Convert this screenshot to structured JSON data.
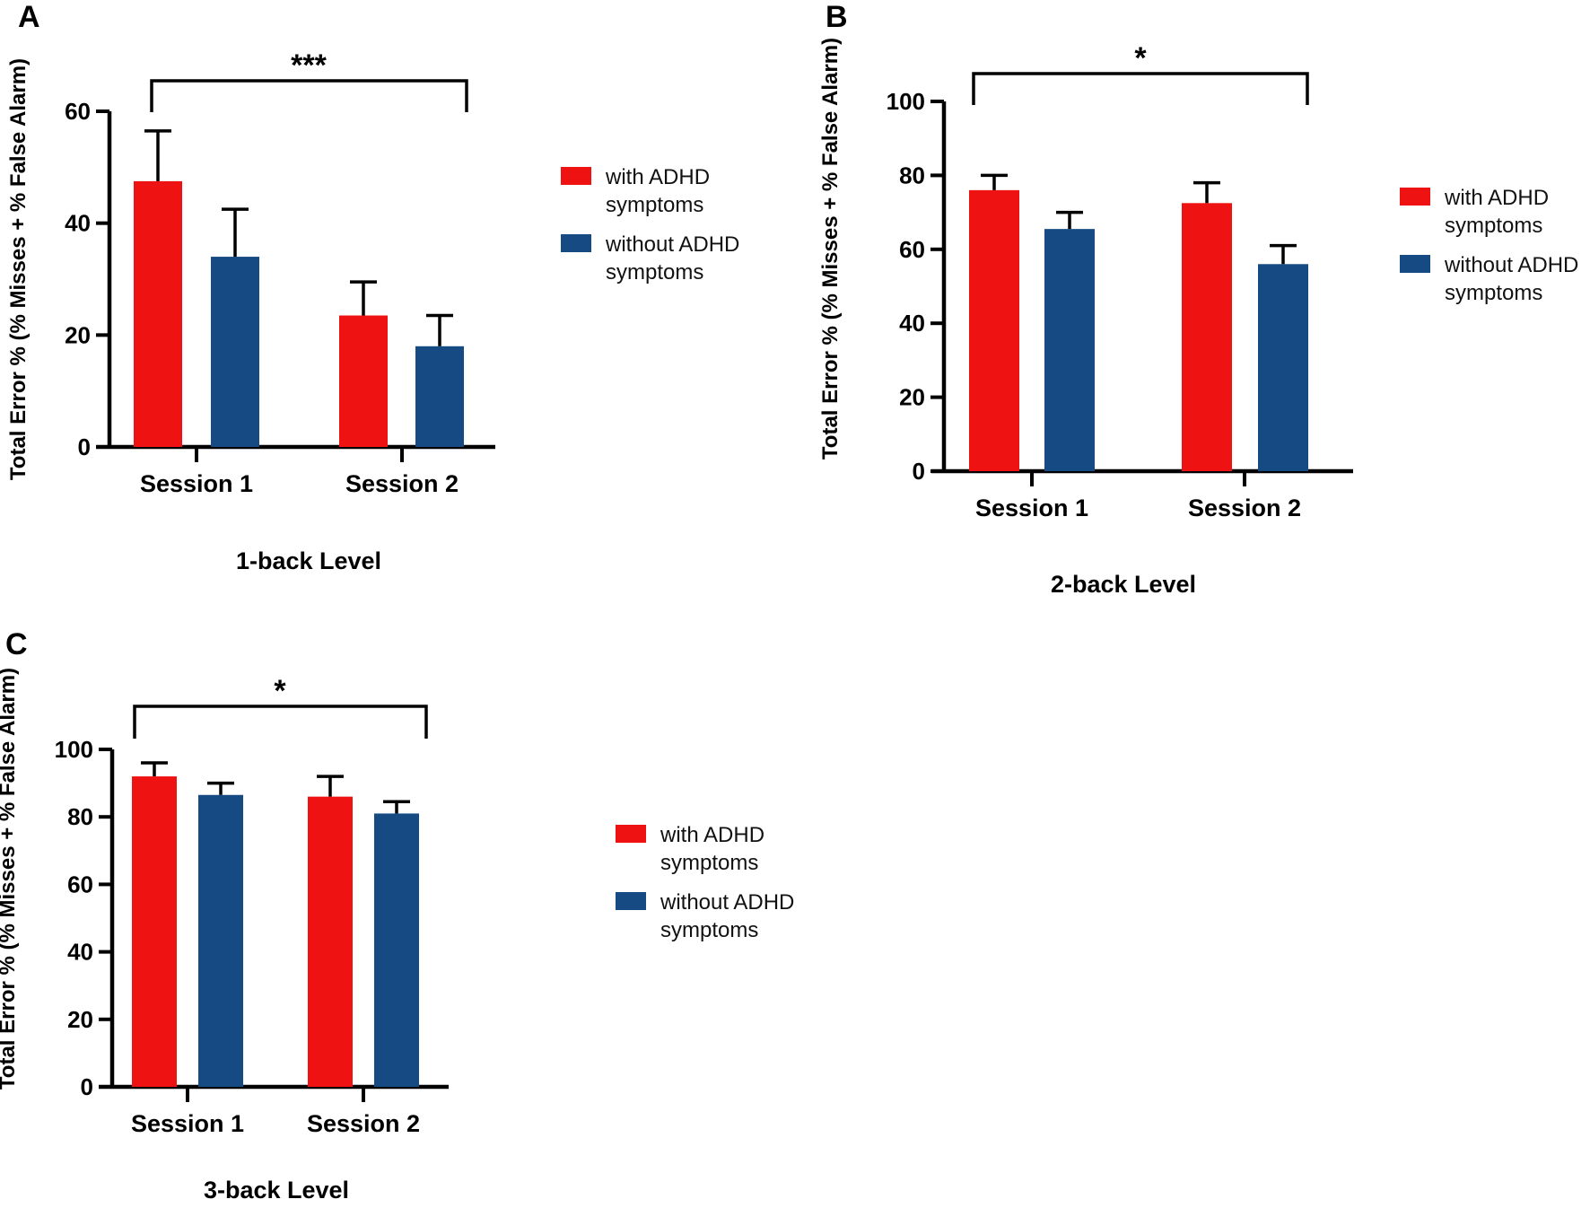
{
  "figure": {
    "panel_letters": [
      "A",
      "B",
      "C"
    ]
  },
  "legend": {
    "items": [
      {
        "name": "legend-with-adhd",
        "label": "with ADHD symptoms",
        "color": "#ee1212",
        "swatch_icon": "red-square-icon"
      },
      {
        "name": "legend-without-adhd",
        "label": "without ADHD symptoms",
        "color": "#154b82",
        "swatch_icon": "blue-square-icon"
      }
    ]
  },
  "chart_data": [
    {
      "panel": "A",
      "type": "bar",
      "title": "",
      "xlabel": "1-back Level",
      "ylabel": "Total Error % (% Misses + % False Alarm)",
      "categories": [
        "Session 1",
        "Session 2"
      ],
      "ylim": [
        0,
        60
      ],
      "yticks": [
        0,
        20,
        40,
        60
      ],
      "grid": false,
      "legend_position": "right",
      "series": [
        {
          "name": "with ADHD symptoms",
          "color": "#ee1212",
          "values": [
            47.5,
            23.5
          ],
          "errors_plus": [
            9,
            6
          ]
        },
        {
          "name": "without ADHD symptoms",
          "color": "#154b82",
          "values": [
            34,
            18
          ],
          "errors_plus": [
            8.5,
            5.5
          ]
        }
      ],
      "significance": {
        "label": "***",
        "between": [
          "Session 1",
          "Session 2"
        ]
      }
    },
    {
      "panel": "B",
      "type": "bar",
      "title": "",
      "xlabel": "2-back Level",
      "ylabel": "Total Error % (% Misses + % False Alarm)",
      "categories": [
        "Session 1",
        "Session 2"
      ],
      "ylim": [
        0,
        100
      ],
      "yticks": [
        0,
        20,
        40,
        60,
        80,
        100
      ],
      "grid": false,
      "legend_position": "right",
      "series": [
        {
          "name": "with ADHD symptoms",
          "color": "#ee1212",
          "values": [
            76,
            72.5
          ],
          "errors_plus": [
            4,
            5.5
          ]
        },
        {
          "name": "without ADHD symptoms",
          "color": "#154b82",
          "values": [
            65.5,
            56
          ],
          "errors_plus": [
            4.5,
            5
          ]
        }
      ],
      "significance": {
        "label": "*",
        "between": [
          "Session 1",
          "Session 2"
        ]
      }
    },
    {
      "panel": "C",
      "type": "bar",
      "title": "",
      "xlabel": "3-back Level",
      "ylabel": "Total Error % (% Misses + % False Alarm)",
      "categories": [
        "Session 1",
        "Session 2"
      ],
      "ylim": [
        0,
        100
      ],
      "yticks": [
        0,
        20,
        40,
        60,
        80,
        100
      ],
      "grid": false,
      "legend_position": "right",
      "series": [
        {
          "name": "with ADHD symptoms",
          "color": "#ee1212",
          "values": [
            92,
            86
          ],
          "errors_plus": [
            4,
            6
          ]
        },
        {
          "name": "without ADHD symptoms",
          "color": "#154b82",
          "values": [
            86.5,
            81
          ],
          "errors_plus": [
            3.5,
            3.5
          ]
        }
      ],
      "significance": {
        "label": "*",
        "between": [
          "Session 1",
          "Session 2"
        ]
      }
    }
  ]
}
